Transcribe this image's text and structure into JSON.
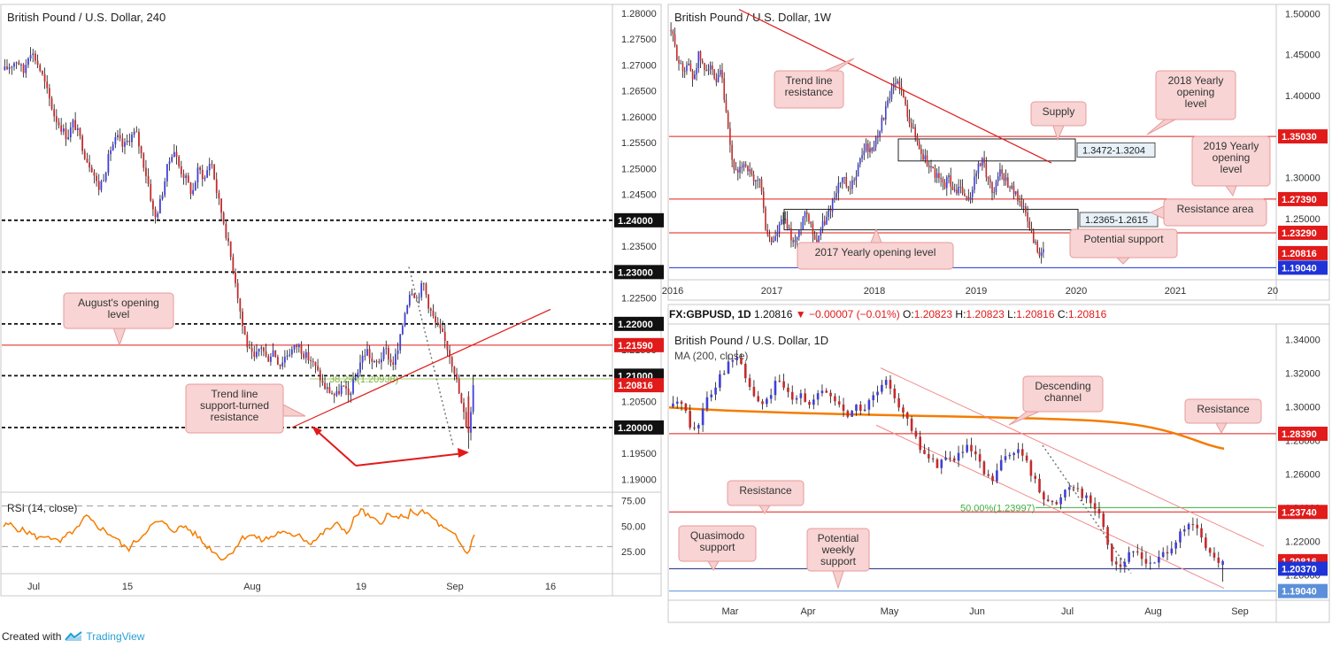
{
  "footer": {
    "prefix": "Created with",
    "brand": "TradingView"
  },
  "colors": {
    "up": "#3f3fd9",
    "down": "#c62a2a",
    "wick": "#111111",
    "red": "#e11a1a",
    "orange": "#f57c00",
    "green": "#3cb043",
    "blue": "#1f33d6"
  },
  "chart_data": [
    {
      "id": "h4",
      "type": "candlestick",
      "title": "British Pound / U.S. Dollar, 240",
      "ylim": [
        1.1875,
        1.2815
      ],
      "y_ticks": [
        "1.19000",
        "1.19500",
        "1.20000",
        "1.20500",
        "1.21000",
        "1.21500",
        "1.22000",
        "1.22500",
        "1.23000",
        "1.23500",
        "1.24000",
        "1.24500",
        "1.25000",
        "1.25500",
        "1.26000",
        "1.26500",
        "1.27000",
        "1.27500",
        "1.28000"
      ],
      "x_ticks": [
        "Jul",
        "15",
        "Aug",
        "19",
        "Sep",
        "16"
      ],
      "price_badges": [
        {
          "label": "1.24000",
          "value": 1.24,
          "style": "dark"
        },
        {
          "label": "1.23000",
          "value": 1.23,
          "style": "dark"
        },
        {
          "label": "1.22000",
          "value": 1.22,
          "style": "dark"
        },
        {
          "label": "1.21590",
          "value": 1.2159,
          "style": "red"
        },
        {
          "label": "1.21000",
          "value": 1.21,
          "style": "dark"
        },
        {
          "label": "1.20816",
          "value": 1.20816,
          "style": "red"
        },
        {
          "label": "1.20000",
          "value": 1.2,
          "style": "dark"
        }
      ],
      "fib_label": "38.2%(1.20938)",
      "annotations": [
        {
          "text": "August's opening level"
        },
        {
          "text": "Trend line support-turned resistance"
        }
      ],
      "ohlc_path": [
        1.269,
        1.27,
        1.271,
        1.2685,
        1.273,
        1.271,
        1.268,
        1.264,
        1.26,
        1.258,
        1.256,
        1.259,
        1.256,
        1.252,
        1.25,
        1.246,
        1.249,
        1.254,
        1.256,
        1.254,
        1.256,
        1.257,
        1.252,
        1.247,
        1.24,
        1.244,
        1.25,
        1.254,
        1.25,
        1.248,
        1.245,
        1.25,
        1.248,
        1.252,
        1.245,
        1.24,
        1.234,
        1.228,
        1.22,
        1.215,
        1.213,
        1.216,
        1.213,
        1.215,
        1.212,
        1.214,
        1.215,
        1.216,
        1.214,
        1.213,
        1.211,
        1.208,
        1.207,
        1.206,
        1.208,
        1.206,
        1.209,
        1.213,
        1.215,
        1.212,
        1.213,
        1.215,
        1.212,
        1.215,
        1.222,
        1.227,
        1.225,
        1.228,
        1.223,
        1.22,
        1.218,
        1.215,
        1.211,
        1.205,
        1.2,
        1.208
      ],
      "rsi": {
        "title": "RSI (14, close)",
        "ylim": [
          5,
          80
        ],
        "y_ticks": [
          "25.00",
          "50.00",
          "75.00"
        ],
        "values": [
          50,
          52,
          48,
          46,
          44,
          40,
          38,
          42,
          36,
          34,
          40,
          45,
          48,
          60,
          55,
          50,
          46,
          42,
          38,
          30,
          28,
          35,
          40,
          48,
          52,
          55,
          50,
          46,
          48,
          50,
          44,
          40,
          32,
          28,
          22,
          18,
          22,
          30,
          38,
          42,
          40,
          36,
          38,
          40,
          45,
          42,
          40,
          44,
          36,
          34,
          38,
          44,
          48,
          52,
          48,
          44,
          60,
          66,
          60,
          56,
          52,
          62,
          58,
          60,
          56,
          66,
          62,
          64,
          60,
          54,
          48,
          44,
          40,
          30,
          22,
          44
        ]
      }
    },
    {
      "id": "weekly",
      "type": "candlestick",
      "title": "British Pound / U.S. Dollar, 1W",
      "ylim": [
        1.18,
        1.51
      ],
      "y_ticks": [
        "1.25000",
        "1.30000",
        "1.35000",
        "1.40000",
        "1.45000",
        "1.50000"
      ],
      "x_ticks": [
        "2016",
        "2017",
        "2018",
        "2019",
        "2020",
        "2021",
        "20"
      ],
      "price_badges": [
        {
          "label": "1.35030",
          "value": 1.3503,
          "style": "red"
        },
        {
          "label": "1.27390",
          "value": 1.2739,
          "style": "red"
        },
        {
          "label": "1.23290",
          "value": 1.2329,
          "style": "red"
        },
        {
          "label": "1.20816",
          "value": 1.20816,
          "style": "red"
        },
        {
          "label": "1.19040",
          "value": 1.1904,
          "style": "blue"
        }
      ],
      "zones": [
        {
          "label": "1.3472-1.3204",
          "high": 1.3472,
          "low": 1.3204
        },
        {
          "label": "1.2365-1.2615",
          "high": 1.2615,
          "low": 1.2365
        }
      ],
      "annotations": [
        {
          "text": "Trend line resistance"
        },
        {
          "text": "2018 Yearly opening level"
        },
        {
          "text": "Supply"
        },
        {
          "text": "2019 Yearly opening level"
        },
        {
          "text": "Resistance area"
        },
        {
          "text": "Potential support"
        },
        {
          "text": "2017 Yearly opening level"
        }
      ],
      "ohlc_path": [
        1.48,
        1.45,
        1.43,
        1.44,
        1.42,
        1.45,
        1.43,
        1.44,
        1.41,
        1.43,
        1.37,
        1.32,
        1.3,
        1.32,
        1.31,
        1.29,
        1.3,
        1.24,
        1.22,
        1.23,
        1.25,
        1.24,
        1.22,
        1.23,
        1.26,
        1.25,
        1.22,
        1.24,
        1.25,
        1.27,
        1.29,
        1.3,
        1.28,
        1.3,
        1.32,
        1.34,
        1.33,
        1.35,
        1.37,
        1.39,
        1.41,
        1.42,
        1.39,
        1.37,
        1.35,
        1.33,
        1.32,
        1.31,
        1.3,
        1.29,
        1.3,
        1.28,
        1.29,
        1.27,
        1.28,
        1.31,
        1.32,
        1.3,
        1.28,
        1.31,
        1.3,
        1.29,
        1.28,
        1.27,
        1.25,
        1.23,
        1.21,
        1.208
      ]
    },
    {
      "id": "daily",
      "type": "candlestick",
      "title": "British Pound / U.S. Dollar, 1D",
      "symbol_line": {
        "symbol": "FX:GBPUSD, 1D",
        "price": "1.20816",
        "change": "−0.00007 (−0.01%)",
        "o_label": "O:",
        "o": "1.20823",
        "h_label": "H:",
        "h": "1.20823",
        "l_label": "L:",
        "l": "1.20816",
        "c_label": "C:",
        "c": "1.20816"
      },
      "ma_label": "MA (200, close)",
      "ylim": [
        1.186,
        1.347
      ],
      "y_ticks": [
        "1.20000",
        "1.22000",
        "1.24000",
        "1.26000",
        "1.28000",
        "1.30000",
        "1.32000",
        "1.34000"
      ],
      "x_ticks": [
        "Mar",
        "Apr",
        "May",
        "Jun",
        "Jul",
        "Aug",
        "Sep"
      ],
      "price_badges": [
        {
          "label": "1.28390",
          "value": 1.2839,
          "style": "red"
        },
        {
          "label": "1.23740",
          "value": 1.2374,
          "style": "red"
        },
        {
          "label": "1.20816",
          "value": 1.20816,
          "style": "red"
        },
        {
          "label": "1.20370",
          "value": 1.2037,
          "style": "blue"
        },
        {
          "label": "1.19040",
          "value": 1.1904,
          "style": "blue"
        }
      ],
      "fib_label": "50.00%(1.23997)",
      "annotations": [
        {
          "text": "Descending channel"
        },
        {
          "text": "Resistance"
        },
        {
          "text": "Resistance"
        },
        {
          "text": "Quasimodo support"
        },
        {
          "text": "Potential weekly support"
        }
      ],
      "ohlc_path": [
        1.3,
        1.305,
        1.29,
        1.285,
        1.305,
        1.31,
        1.32,
        1.325,
        1.33,
        1.318,
        1.308,
        1.3,
        1.305,
        1.315,
        1.31,
        1.305,
        1.31,
        1.3,
        1.305,
        1.31,
        1.305,
        1.3,
        1.295,
        1.3,
        1.298,
        1.305,
        1.31,
        1.315,
        1.305,
        1.295,
        1.285,
        1.275,
        1.27,
        1.265,
        1.27,
        1.268,
        1.272,
        1.275,
        1.27,
        1.26,
        1.255,
        1.265,
        1.272,
        1.275,
        1.27,
        1.26,
        1.25,
        1.245,
        1.24,
        1.25,
        1.255,
        1.25,
        1.245,
        1.24,
        1.23,
        1.21,
        1.205,
        1.21,
        1.215,
        1.21,
        1.205,
        1.21,
        1.215,
        1.22,
        1.225,
        1.23,
        1.225,
        1.215,
        1.208,
        1.2082
      ]
    }
  ]
}
